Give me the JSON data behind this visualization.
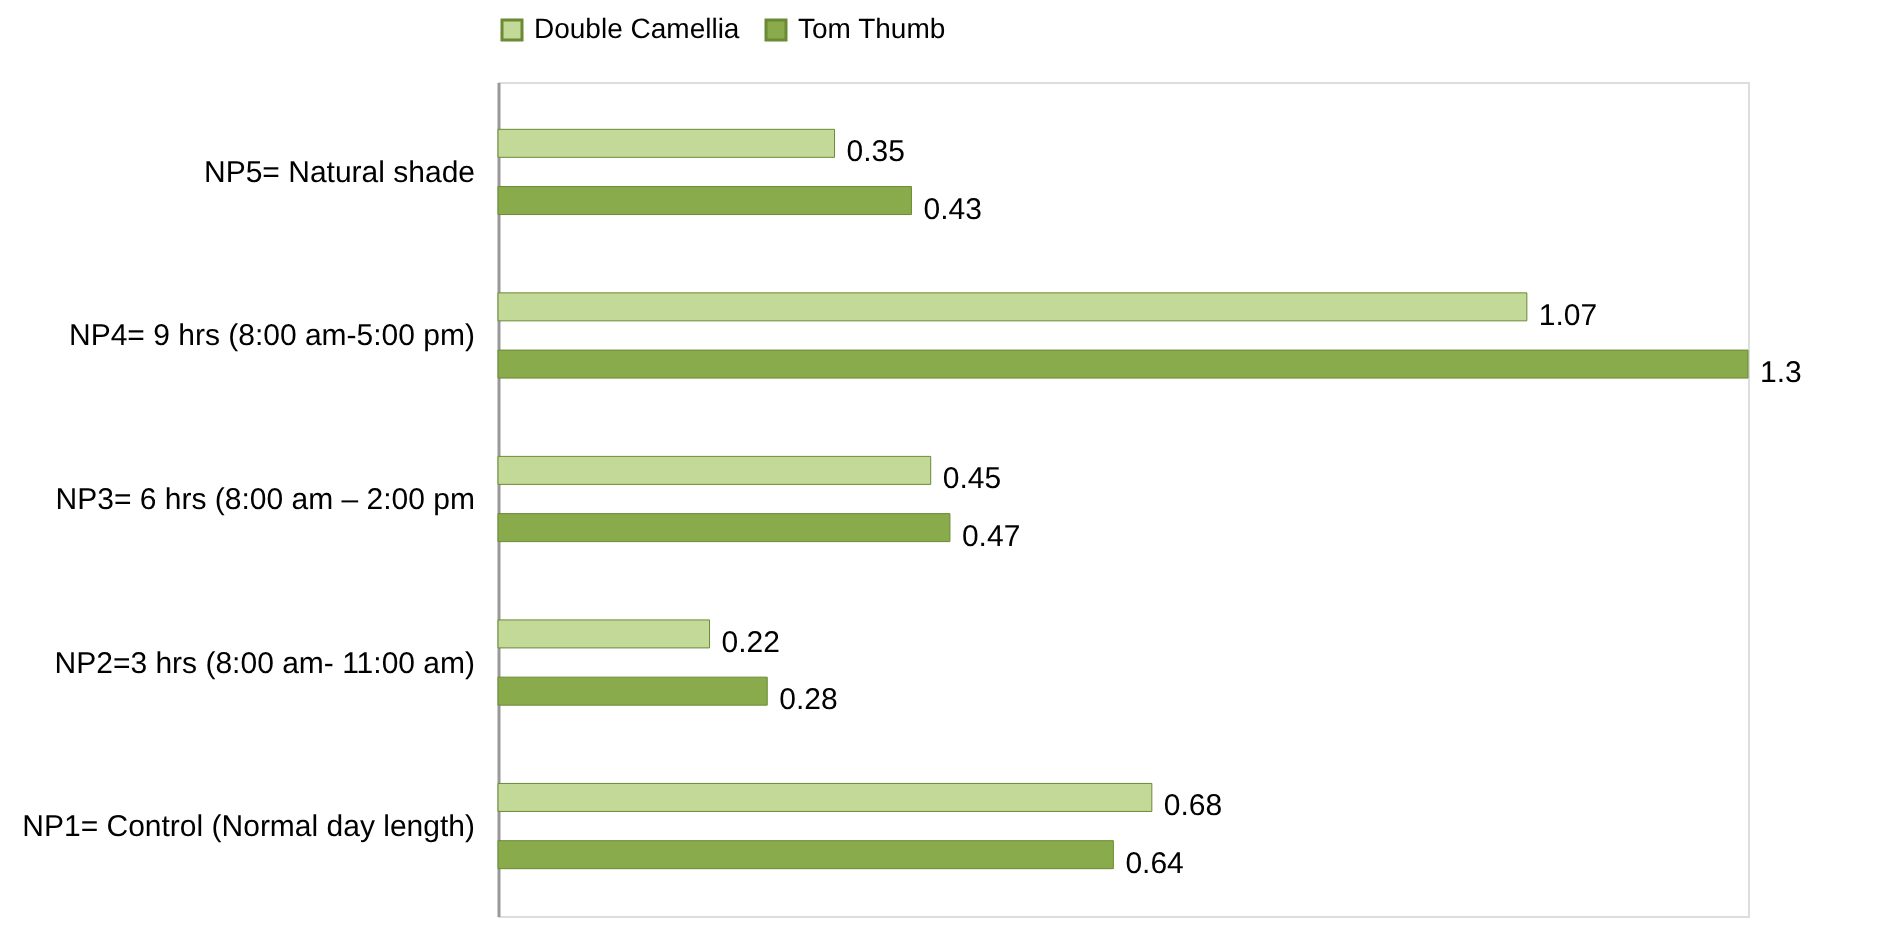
{
  "chart_data": {
    "type": "bar",
    "orientation": "horizontal",
    "data_labels": true,
    "legend": "top",
    "grid": false,
    "categories": [
      "NP5= Natural shade",
      "NP4= 9 hrs (8:00 am-5:00 pm)",
      "NP3= 6 hrs (8:00 am – 2:00 pm",
      "NP2=3 hrs (8:00 am- 11:00 am)",
      "NP1= Control (Normal day length)"
    ],
    "series": [
      {
        "name": "Double Camellia",
        "color": "#c3d998",
        "values": [
          0.35,
          1.07,
          0.45,
          0.22,
          0.68
        ]
      },
      {
        "name": "Tom Thumb",
        "color": "#8aab4c",
        "values": [
          0.43,
          1.3,
          0.47,
          0.28,
          0.64
        ]
      }
    ]
  }
}
